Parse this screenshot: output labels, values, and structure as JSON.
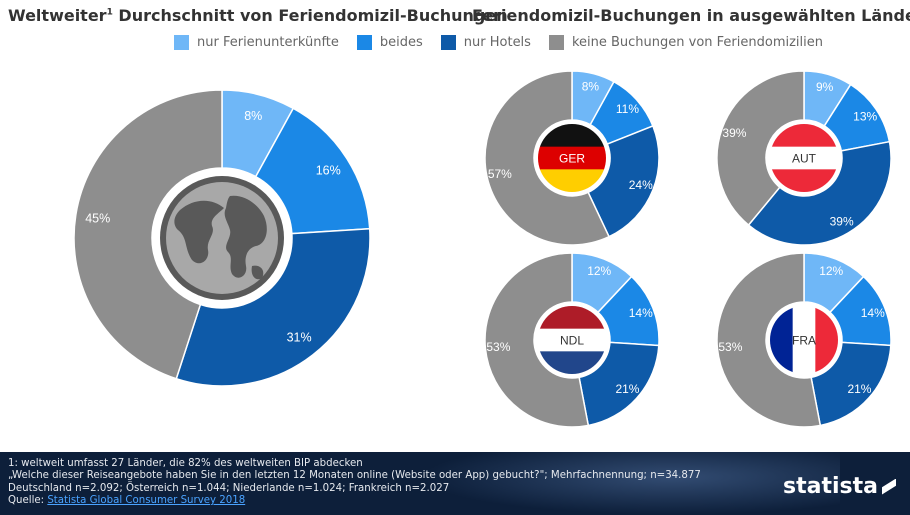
{
  "title_left": "Weltweiter",
  "title_left_sup": "1",
  "title_left_rest": " Durchschnitt von Feriendomizil-Buchungen",
  "title_right": "Feriendomizil-Buchungen in ausgewählten Ländern",
  "legend": [
    {
      "label": "nur Ferienunterkünfte",
      "color": "#6fb7f7"
    },
    {
      "label": "beides",
      "color": "#1b88e6"
    },
    {
      "label": "nur Hotels",
      "color": "#0e5aa8"
    },
    {
      "label": "keine Buchungen von Feriendomizilien",
      "color": "#8e8e8e"
    }
  ],
  "chart_data": [
    {
      "type": "pie",
      "name": "Weltweiter Durchschnitt",
      "icon": "globe-icon",
      "categories": [
        "nur Ferienunterkünfte",
        "beides",
        "nur Hotels",
        "keine Buchungen von Feriendomizilien"
      ],
      "values": [
        8,
        16,
        31,
        45
      ]
    },
    {
      "type": "pie",
      "name": "GER",
      "icon": "germany-flag",
      "categories": [
        "nur Ferienunterkünfte",
        "beides",
        "nur Hotels",
        "keine Buchungen von Feriendomizilien"
      ],
      "values": [
        8,
        11,
        24,
        57
      ]
    },
    {
      "type": "pie",
      "name": "AUT",
      "icon": "austria-flag",
      "categories": [
        "nur Ferienunterkünfte",
        "beides",
        "nur Hotels",
        "keine Buchungen von Feriendomizilien"
      ],
      "values": [
        9,
        13,
        39,
        39
      ]
    },
    {
      "type": "pie",
      "name": "NDL",
      "icon": "netherlands-flag",
      "categories": [
        "nur Ferienunterkünfte",
        "beides",
        "nur Hotels",
        "keine Buchungen von Feriendomizilien"
      ],
      "values": [
        12,
        14,
        21,
        53
      ]
    },
    {
      "type": "pie",
      "name": "FRA",
      "icon": "france-flag",
      "categories": [
        "nur Ferienunterkünfte",
        "beides",
        "nur Hotels",
        "keine Buchungen von Feriendomizilien"
      ],
      "values": [
        12,
        14,
        21,
        53
      ]
    }
  ],
  "footer": {
    "note1": "1: weltweit umfasst 27 Länder, die 82% des weltweiten BIP abdecken",
    "note2": "„Welche dieser Reiseangebote haben Sie in den letzten 12 Monaten online (Website oder App) gebucht?\"; Mehrfachnennung; n=34.877",
    "note3": "Deutschland n=2.092; Österreich n=1.044; Niederlande n=1.024; Frankreich n=2.027",
    "source_label": "Quelle: ",
    "source": "Statista Global Consumer Survey 2018",
    "brand": "statista"
  }
}
